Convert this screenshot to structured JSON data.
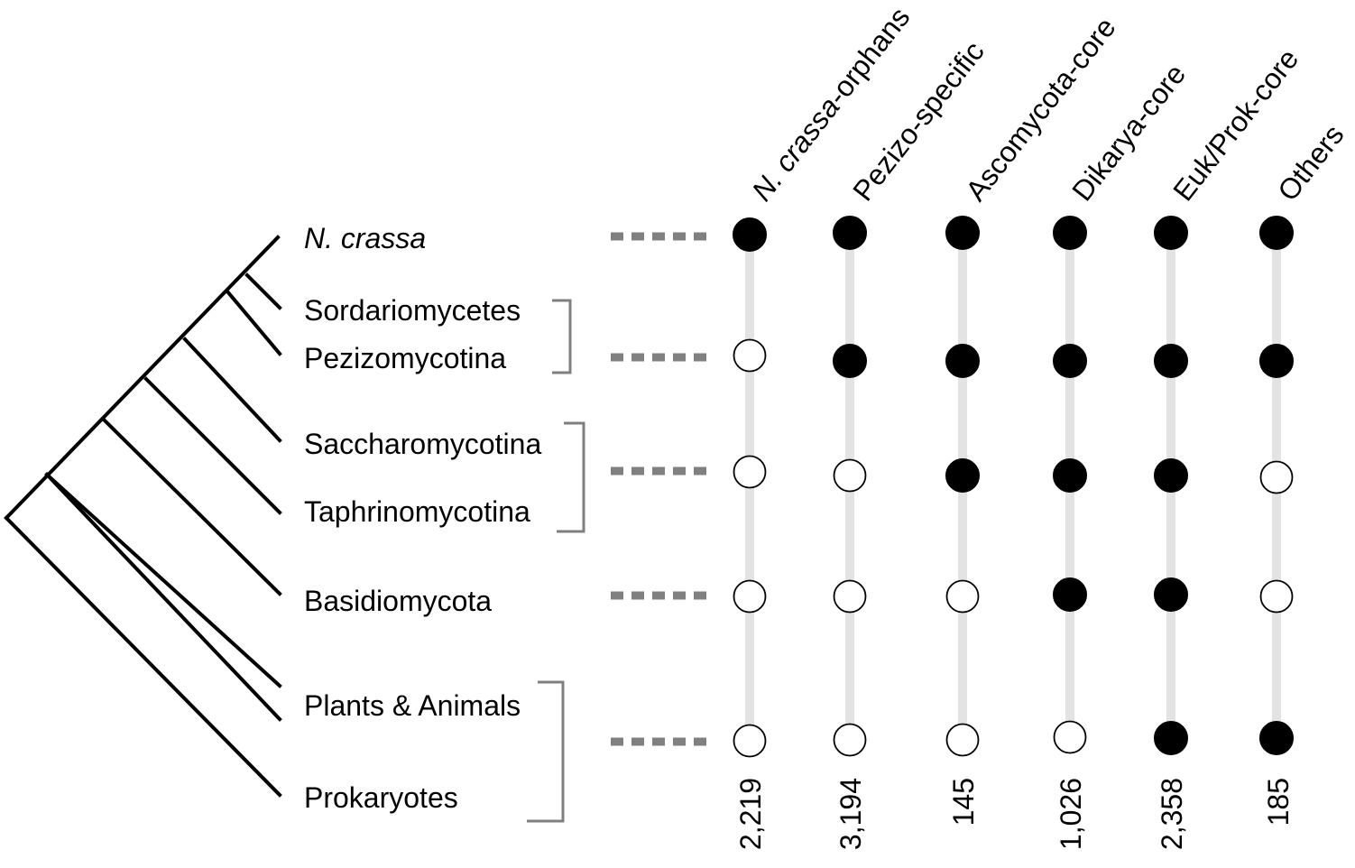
{
  "taxa": [
    {
      "id": "ncrassa",
      "label": "N. crassa",
      "italic": true
    },
    {
      "id": "sordariomycetes",
      "label": "Sordariomycetes"
    },
    {
      "id": "pezizomycotina",
      "label": "Pezizomycotina"
    },
    {
      "id": "saccharomycotina",
      "label": "Saccharomycotina"
    },
    {
      "id": "taphrinomycotina",
      "label": "Taphrinomycotina"
    },
    {
      "id": "basidiomycota",
      "label": "Basidiomycota"
    },
    {
      "id": "plants_animals",
      "label": "Plants & Animals"
    },
    {
      "id": "prokaryotes",
      "label": "Prokaryotes"
    }
  ],
  "columns": [
    {
      "id": "orphans",
      "italic_part": "N. crassa",
      "rest": "-orphans",
      "count": "2,219",
      "presence": [
        true,
        false,
        false,
        false,
        false
      ]
    },
    {
      "id": "pezizo",
      "italic_part": "",
      "rest": "Pezizo-specific",
      "count": "3,194",
      "presence": [
        true,
        true,
        false,
        false,
        false
      ]
    },
    {
      "id": "ascomycota",
      "italic_part": "",
      "rest": "Ascomycota-core",
      "count": "145",
      "presence": [
        true,
        true,
        true,
        false,
        false
      ]
    },
    {
      "id": "dikarya",
      "italic_part": "",
      "rest": "Dikarya-core",
      "count": "1,026",
      "presence": [
        true,
        true,
        true,
        true,
        false
      ]
    },
    {
      "id": "eukprok",
      "italic_part": "",
      "rest": "Euk/Prok-core",
      "count": "2,358",
      "presence": [
        true,
        true,
        true,
        true,
        true
      ]
    },
    {
      "id": "others",
      "italic_part": "",
      "rest": "Others",
      "count": "185",
      "presence": [
        true,
        true,
        false,
        false,
        true
      ]
    }
  ],
  "colors": {
    "tree": "#000000",
    "bracket": "#7f7f7f",
    "connector": "#808080",
    "vertical_line": "#e3e3e3",
    "filled_dot": "#000000",
    "empty_dot": "#ffffff"
  }
}
